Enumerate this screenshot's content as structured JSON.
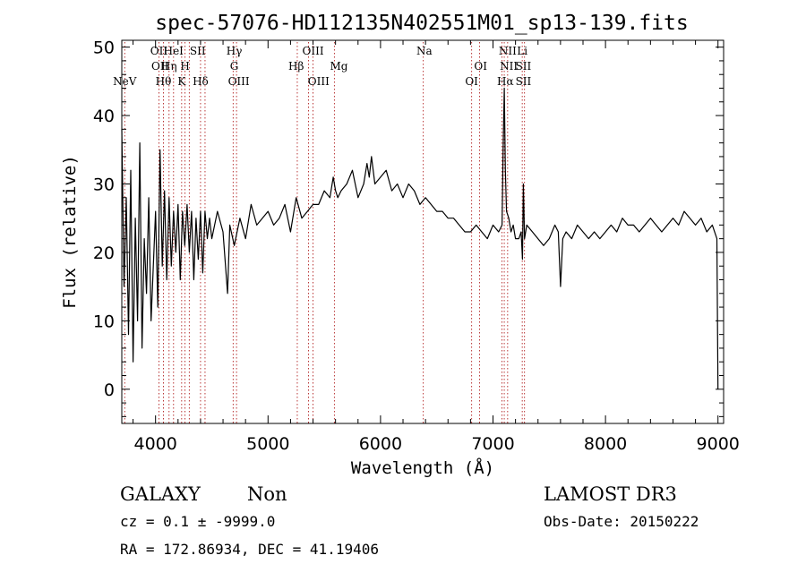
{
  "chart_data": {
    "type": "line",
    "title": "spec-57076-HD112135N402551M01_sp13-139.fits",
    "xlabel": "Wavelength (Å)",
    "ylabel": "Flux (relative)",
    "xlim": [
      3700,
      9050
    ],
    "ylim": [
      -5,
      51
    ],
    "x_ticks": [
      4000,
      5000,
      6000,
      7000,
      8000,
      9000
    ],
    "y_ticks": [
      0,
      10,
      20,
      30,
      40,
      50
    ],
    "grid": false,
    "series": [
      {
        "color": "#000000",
        "x": [
          3700,
          3720,
          3740,
          3760,
          3780,
          3800,
          3820,
          3840,
          3860,
          3880,
          3900,
          3920,
          3940,
          3960,
          3980,
          4000,
          4020,
          4040,
          4060,
          4080,
          4100,
          4120,
          4140,
          4160,
          4180,
          4200,
          4220,
          4240,
          4260,
          4280,
          4300,
          4320,
          4340,
          4360,
          4380,
          4400,
          4420,
          4440,
          4460,
          4480,
          4500,
          4550,
          4600,
          4640,
          4660,
          4700,
          4750,
          4800,
          4850,
          4900,
          4950,
          5000,
          5050,
          5100,
          5150,
          5200,
          5250,
          5300,
          5350,
          5400,
          5450,
          5500,
          5550,
          5580,
          5600,
          5620,
          5650,
          5700,
          5750,
          5800,
          5850,
          5880,
          5900,
          5920,
          5950,
          6000,
          6050,
          6100,
          6150,
          6200,
          6250,
          6300,
          6350,
          6400,
          6450,
          6500,
          6550,
          6600,
          6650,
          6700,
          6750,
          6800,
          6850,
          6900,
          6950,
          7000,
          7050,
          7080,
          7090,
          7100,
          7110,
          7120,
          7140,
          7160,
          7180,
          7200,
          7230,
          7250,
          7262,
          7270,
          7280,
          7300,
          7350,
          7400,
          7450,
          7500,
          7550,
          7580,
          7600,
          7620,
          7650,
          7700,
          7750,
          7800,
          7850,
          7900,
          7950,
          8000,
          8050,
          8100,
          8150,
          8200,
          8250,
          8300,
          8350,
          8400,
          8450,
          8500,
          8550,
          8600,
          8650,
          8700,
          8750,
          8800,
          8850,
          8900,
          8950,
          8990,
          9000
        ],
        "y": [
          38,
          15,
          28,
          8,
          32,
          4,
          25,
          10,
          36,
          6,
          22,
          14,
          28,
          10,
          18,
          26,
          12,
          35,
          18,
          29,
          16,
          28,
          18,
          26,
          20,
          27,
          16,
          26,
          21,
          27,
          20,
          26,
          16,
          25,
          19,
          26,
          17,
          26,
          22,
          25,
          22,
          26,
          23,
          14,
          24,
          21,
          25,
          22,
          27,
          24,
          25,
          26,
          24,
          25,
          27,
          23,
          28,
          25,
          26,
          27,
          27,
          29,
          28,
          31,
          29,
          28,
          29,
          30,
          32,
          28,
          30,
          33,
          31,
          34,
          30,
          31,
          32,
          29,
          30,
          28,
          30,
          29,
          27,
          28,
          27,
          26,
          26,
          25,
          25,
          24,
          23,
          23,
          24,
          23,
          22,
          24,
          23,
          24,
          35,
          44,
          32,
          26,
          25,
          23,
          24,
          22,
          22,
          23,
          19,
          30,
          22,
          24,
          23,
          22,
          21,
          22,
          24,
          23,
          15,
          22,
          23,
          22,
          24,
          23,
          22,
          23,
          22,
          23,
          24,
          23,
          25,
          24,
          24,
          23,
          24,
          25,
          24,
          23,
          24,
          25,
          24,
          26,
          25,
          24,
          25,
          23,
          24,
          22,
          0
        ]
      }
    ],
    "line_marks": [
      {
        "label": "NeV",
        "x": 3726,
        "row": 2
      },
      {
        "label": "OII",
        "x": 4030,
        "row": 0
      },
      {
        "label": "OII",
        "x": 4040,
        "row": 1
      },
      {
        "label": "Hθ",
        "x": 4070,
        "row": 2
      },
      {
        "label": "Hη",
        "x": 4120,
        "row": 1
      },
      {
        "label": "HeI",
        "x": 4160,
        "row": 0
      },
      {
        "label": "H",
        "x": 4262,
        "row": 1
      },
      {
        "label": "K",
        "x": 4232,
        "row": 2
      },
      {
        "label": "SII",
        "x": 4375,
        "row": 0
      },
      {
        "label": "Hδ",
        "x": 4400,
        "row": 2
      },
      {
        "label": "Hγ",
        "x": 4700,
        "row": 0
      },
      {
        "label": "G",
        "x": 4700,
        "row": 1
      },
      {
        "label": "OIII",
        "x": 4740,
        "row": 2
      },
      {
        "label": "Hβ",
        "x": 5250,
        "row": 1
      },
      {
        "label": "OIII",
        "x": 5400,
        "row": 0
      },
      {
        "label": "OIII",
        "x": 5450,
        "row": 2
      },
      {
        "label": "Mg",
        "x": 5630,
        "row": 1
      },
      {
        "label": "Na",
        "x": 6390,
        "row": 0
      },
      {
        "label": "OI",
        "x": 6890,
        "row": 1
      },
      {
        "label": "OI",
        "x": 6810,
        "row": 2
      },
      {
        "label": "NII",
        "x": 7130,
        "row": 0
      },
      {
        "label": "NII",
        "x": 7140,
        "row": 1
      },
      {
        "label": "Hα",
        "x": 7110,
        "row": 2
      },
      {
        "label": "Li",
        "x": 7260,
        "row": 0
      },
      {
        "label": "SII",
        "x": 7270,
        "row": 1
      },
      {
        "label": "SII",
        "x": 7270,
        "row": 2
      }
    ],
    "line_positions": [
      3726,
      4030,
      4070,
      4120,
      4160,
      4232,
      4262,
      4300,
      4400,
      4440,
      4690,
      4720,
      5260,
      5360,
      5400,
      5590,
      6380,
      6810,
      6880,
      7080,
      7100,
      7130,
      7260,
      7280
    ]
  },
  "info": {
    "left_line1_a": "GALAXY",
    "left_line1_b": "Non",
    "cz": "cz = 0.1 ± -9999.0",
    "coords": "RA = 172.86934, DEC =  41.19406",
    "right_line1": "LAMOST DR3",
    "obs_date": "Obs-Date: 20150222"
  }
}
